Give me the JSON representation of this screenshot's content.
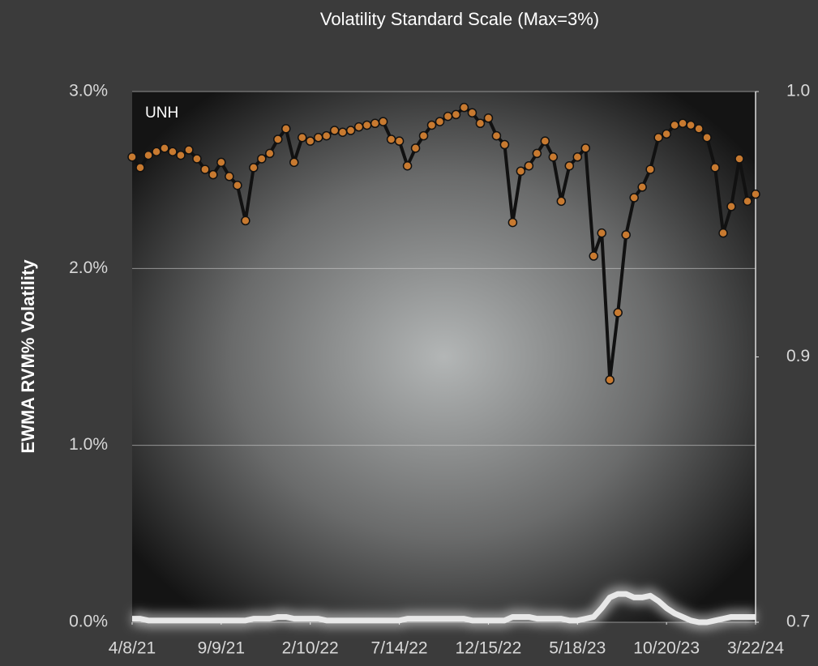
{
  "chart_data": {
    "type": "line",
    "title": "Volatility Standard Scale (Max=3%)",
    "y_label": "EWMA RVM% Volatility",
    "xlim": [
      0,
      154
    ],
    "xticks": [
      {
        "value": 0,
        "label": "4/8/21"
      },
      {
        "value": 22,
        "label": "9/9/21"
      },
      {
        "value": 44,
        "label": "2/10/22"
      },
      {
        "value": 66,
        "label": "7/14/22"
      },
      {
        "value": 88,
        "label": "12/15/22"
      },
      {
        "value": 110,
        "label": "5/18/23"
      },
      {
        "value": 132,
        "label": "10/20/23"
      },
      {
        "value": 154,
        "label": "3/22/24"
      }
    ],
    "ylim": [
      0,
      3
    ],
    "yticks": [
      {
        "value": 0,
        "label": "0.0%"
      },
      {
        "value": 1,
        "label": "1.0%"
      },
      {
        "value": 2,
        "label": "2.0%"
      },
      {
        "value": 3,
        "label": "3.0%"
      }
    ],
    "y2lim": [
      0.7,
      1.0
    ],
    "y2ticks": [
      {
        "value": 0.7,
        "label": "0.7"
      },
      {
        "value": 0.85,
        "label": "0.9"
      },
      {
        "value": 1.0,
        "label": "1.0"
      }
    ],
    "grid": true,
    "x": [
      0,
      2,
      4,
      6,
      8,
      10,
      12,
      14,
      16,
      18,
      20,
      22,
      24,
      26,
      28,
      30,
      32,
      34,
      36,
      38,
      40,
      42,
      44,
      46,
      48,
      50,
      52,
      54,
      56,
      58,
      60,
      62,
      64,
      66,
      68,
      70,
      72,
      74,
      76,
      78,
      80,
      82,
      84,
      86,
      88,
      90,
      92,
      94,
      96,
      98,
      100,
      102,
      104,
      106,
      108,
      110,
      112,
      114,
      116,
      118,
      120,
      122,
      124,
      126,
      128,
      130,
      132,
      134,
      136,
      138,
      140,
      142,
      144,
      146,
      148,
      150,
      152,
      154
    ],
    "series": [
      {
        "name": "UNH",
        "color": "#c87a30",
        "line_color": "#111111",
        "values": [
          2.63,
          2.57,
          2.64,
          2.66,
          2.68,
          2.66,
          2.64,
          2.67,
          2.62,
          2.56,
          2.53,
          2.6,
          2.52,
          2.47,
          2.27,
          2.57,
          2.62,
          2.65,
          2.73,
          2.79,
          2.6,
          2.74,
          2.72,
          2.74,
          2.75,
          2.78,
          2.77,
          2.78,
          2.8,
          2.81,
          2.82,
          2.83,
          2.73,
          2.72,
          2.58,
          2.68,
          2.75,
          2.81,
          2.83,
          2.86,
          2.87,
          2.91,
          2.88,
          2.82,
          2.85,
          2.75,
          2.7,
          2.26,
          2.55,
          2.58,
          2.65,
          2.72,
          2.63,
          2.38,
          2.58,
          2.63,
          2.68,
          2.07,
          2.2,
          1.37,
          1.75,
          2.19,
          2.4,
          2.46,
          2.56,
          2.74,
          2.76,
          2.81,
          2.82,
          2.81,
          2.79,
          2.74,
          2.57,
          2.2,
          2.35,
          2.62,
          2.38,
          2.42
        ]
      },
      {
        "color": "#e8e8e8",
        "values": [
          0.02,
          0.02,
          0.01,
          0.01,
          0.01,
          0.01,
          0.01,
          0.01,
          0.01,
          0.01,
          0.01,
          0.01,
          0.01,
          0.01,
          0.01,
          0.02,
          0.02,
          0.02,
          0.03,
          0.03,
          0.02,
          0.02,
          0.02,
          0.02,
          0.01,
          0.01,
          0.01,
          0.01,
          0.01,
          0.01,
          0.01,
          0.01,
          0.01,
          0.01,
          0.02,
          0.02,
          0.02,
          0.02,
          0.02,
          0.02,
          0.02,
          0.02,
          0.01,
          0.01,
          0.01,
          0.01,
          0.01,
          0.03,
          0.03,
          0.03,
          0.02,
          0.02,
          0.02,
          0.02,
          0.01,
          0.01,
          0.02,
          0.03,
          0.08,
          0.14,
          0.16,
          0.16,
          0.14,
          0.14,
          0.15,
          0.12,
          0.08,
          0.05,
          0.03,
          0.01,
          0.0,
          0.0,
          0.01,
          0.02,
          0.03,
          0.03,
          0.03,
          0.03
        ]
      }
    ]
  }
}
